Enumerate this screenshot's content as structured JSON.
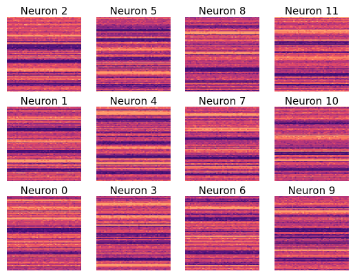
{
  "chart_data": {
    "type": "heatmap",
    "grid_rows": 3,
    "grid_cols": 4,
    "axes_visible": false,
    "colormap": "rocket",
    "palette": [
      "#3b0f70",
      "#5a167e",
      "#8c2981",
      "#b73779",
      "#de4968",
      "#f66e5b",
      "#fe9f6d"
    ],
    "panels": [
      {
        "title": "Neuron 2",
        "dark_bands": [
          0.38,
          0.42,
          0.58,
          0.9
        ],
        "bright_bands": [
          0.25,
          0.7
        ]
      },
      {
        "title": "Neuron 5",
        "dark_bands": [
          0.16,
          0.3,
          0.55,
          0.93
        ],
        "bright_bands": [
          0.42,
          0.74
        ]
      },
      {
        "title": "Neuron 8",
        "dark_bands": [
          0.12,
          0.7,
          0.86
        ],
        "bright_bands": [
          0.2,
          0.48
        ]
      },
      {
        "title": "Neuron 11",
        "dark_bands": [
          0.35,
          0.77,
          0.92
        ],
        "bright_bands": [
          0.18,
          0.55
        ]
      },
      {
        "title": "Neuron 1",
        "dark_bands": [
          0.3,
          0.6,
          0.85
        ],
        "bright_bands": [
          0.15,
          0.45,
          0.72
        ]
      },
      {
        "title": "Neuron 4",
        "dark_bands": [
          0.18,
          0.48,
          0.66,
          0.88
        ],
        "bright_bands": [
          0.08,
          0.55,
          0.75
        ]
      },
      {
        "title": "Neuron 7",
        "dark_bands": [
          0.42,
          0.68,
          0.9
        ],
        "bright_bands": [
          0.1,
          0.3
        ]
      },
      {
        "title": "Neuron 10",
        "dark_bands": [
          0.22,
          0.62,
          0.83
        ],
        "bright_bands": [
          0.4,
          0.7
        ]
      },
      {
        "title": "Neuron 0",
        "dark_bands": [
          0.45,
          0.75
        ],
        "bright_bands": [
          0.15,
          0.3,
          0.6
        ]
      },
      {
        "title": "Neuron 3",
        "dark_bands": [
          0.52,
          0.62,
          0.84
        ],
        "bright_bands": [
          0.1,
          0.28,
          0.92
        ]
      },
      {
        "title": "Neuron 6",
        "dark_bands": [
          0.05,
          0.3,
          0.75,
          0.9
        ],
        "bright_bands": [
          0.15,
          0.55
        ]
      },
      {
        "title": "Neuron 9",
        "dark_bands": [
          0.45,
          0.53,
          0.62,
          0.85
        ],
        "bright_bands": [
          0.2,
          0.73
        ]
      }
    ]
  }
}
